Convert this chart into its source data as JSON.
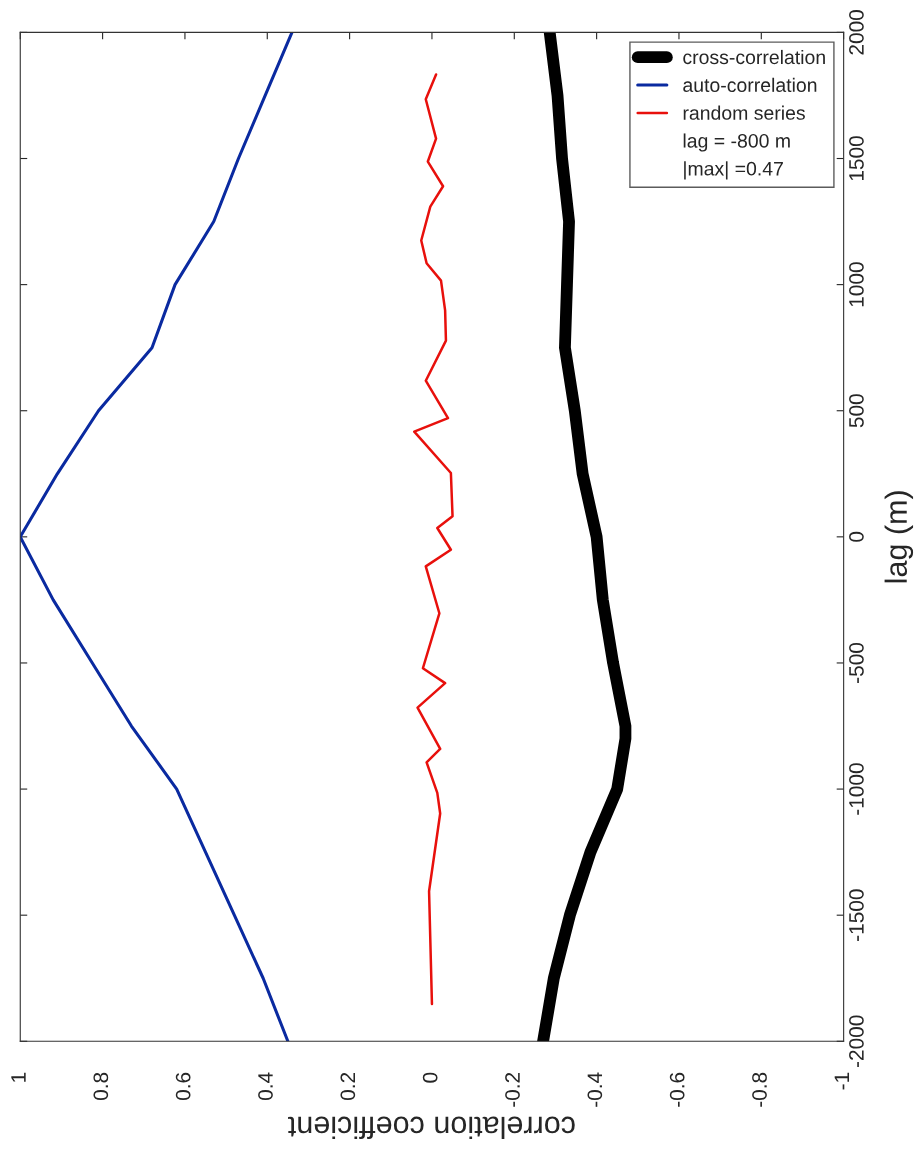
{
  "chart_data": {
    "type": "line",
    "xlabel": "correlation coefficient",
    "ylabel": "lag (m)",
    "xlim": [
      1,
      -1
    ],
    "xticks": [
      1,
      0.8,
      0.6,
      0.4,
      0.2,
      0,
      -0.2,
      -0.4,
      -0.6,
      -0.8,
      -1
    ],
    "ylim": [
      -2000,
      2000
    ],
    "yticks": [
      -2000,
      -1500,
      -1000,
      -500,
      0,
      500,
      1000,
      1500,
      2000
    ],
    "grid": false,
    "legend": "top right",
    "line_style": "solid",
    "annotations": [
      "lag = -800 m",
      "|max| =0.47"
    ],
    "series": [
      {
        "name": "cross-correlation",
        "color": "#000000",
        "x": [
          -0.27,
          -0.296,
          -0.335,
          -0.385,
          -0.45,
          -0.47,
          -0.47,
          -0.44,
          -0.415,
          -0.4,
          -0.366,
          -0.347,
          -0.323,
          -0.328,
          -0.333,
          -0.316,
          -0.305,
          -0.286
        ],
        "values": [
          -2000,
          -1750,
          -1500,
          -1250,
          -1000,
          -800,
          -750,
          -500,
          -250,
          0,
          250,
          500,
          750,
          1000,
          1250,
          1500,
          1750,
          2000
        ]
      },
      {
        "name": "auto-correlation",
        "color": "#0a2aa0",
        "x": [
          0.35,
          0.41,
          0.48,
          0.55,
          0.62,
          0.73,
          0.825,
          0.92,
          1,
          0.91,
          0.81,
          0.68,
          0.624,
          0.53,
          0.47,
          0.405,
          0.34
        ],
        "values": [
          -2000,
          -1750,
          -1500,
          -1250,
          -1000,
          -750,
          -500,
          -250,
          0,
          250,
          500,
          750,
          1000,
          1250,
          1500,
          1750,
          2000
        ]
      },
      {
        "name": "random series",
        "color": "#e8100c",
        "x": [
          0.0,
          0.007,
          -0.02,
          -0.013,
          0.013,
          -0.02,
          0.035,
          -0.032,
          0.022,
          -0.018,
          0.015,
          -0.046,
          -0.013,
          -0.05,
          -0.046,
          0.043,
          -0.039,
          0.015,
          -0.034,
          -0.032,
          -0.022,
          0.013,
          0.026,
          0.004,
          -0.027,
          0.01,
          -0.01,
          0.015,
          -0.01
        ],
        "values": [
          -1852,
          -1405,
          -1097,
          -1015,
          -894,
          -841,
          -677,
          -580,
          -521,
          -303,
          -117,
          -51,
          35,
          82,
          253,
          417,
          471,
          619,
          778,
          898,
          1016,
          1085,
          1175,
          1309,
          1390,
          1488,
          1579,
          1735,
          1833
        ]
      }
    ]
  }
}
